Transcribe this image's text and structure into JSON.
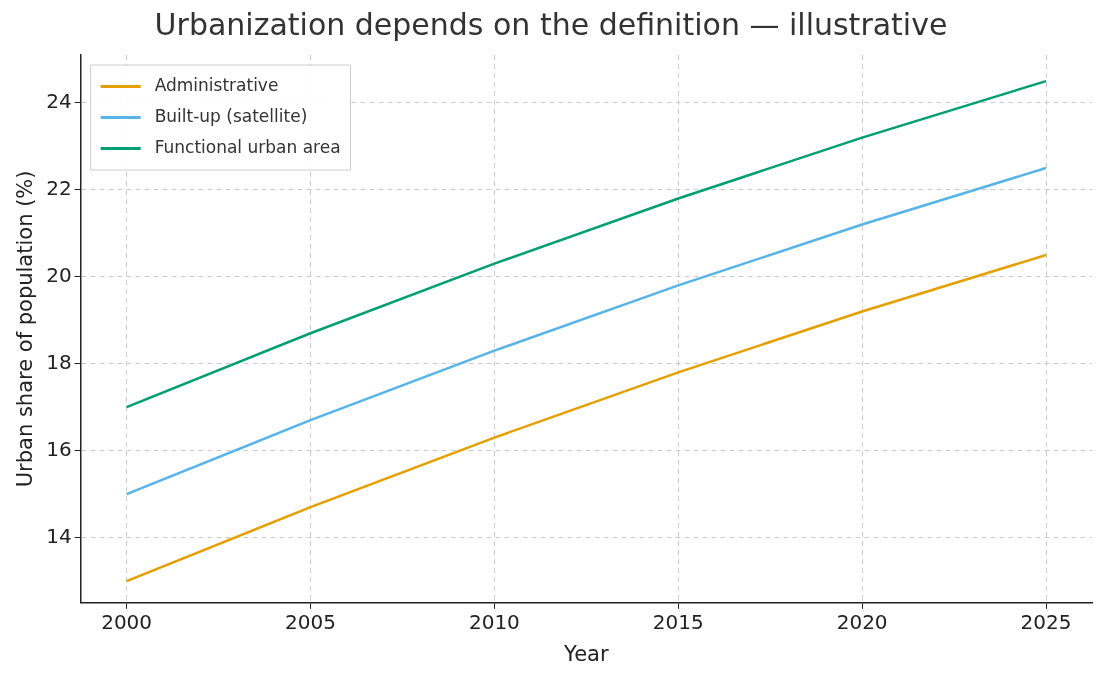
{
  "chart_data": {
    "type": "line",
    "title": "Urbanization depends on the definition — illustrative",
    "xlabel": "Year",
    "ylabel": "Urban share of population (%)",
    "x": [
      2000,
      2005,
      2010,
      2015,
      2020,
      2025
    ],
    "series": [
      {
        "name": "Administrative",
        "color": "#e69f00",
        "values": [
          13,
          14.7,
          16.3,
          17.8,
          19.2,
          20.5
        ]
      },
      {
        "name": "Built-up (satellite)",
        "color": "#56b4e9",
        "values": [
          15,
          16.7,
          18.3,
          19.8,
          21.2,
          22.5
        ]
      },
      {
        "name": "Functional urban area",
        "color": "#009e73",
        "values": [
          17,
          18.7,
          20.3,
          21.8,
          23.2,
          24.5
        ]
      }
    ],
    "xlim": [
      1998.75,
      2026.25
    ],
    "xticks": [
      2000,
      2005,
      2010,
      2015,
      2020,
      2025
    ],
    "ylim": [
      12.5,
      25.1
    ],
    "yticks": [
      14,
      16,
      18,
      20,
      22,
      24
    ],
    "grid": true,
    "legend": "top left",
    "marker": "none",
    "line_style": "solid"
  }
}
